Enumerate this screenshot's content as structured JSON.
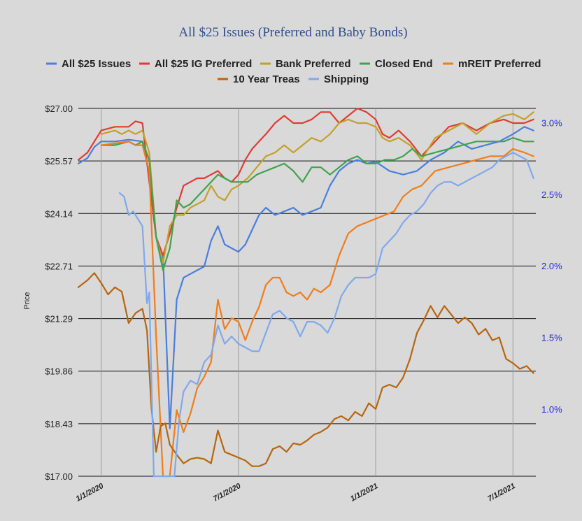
{
  "chart_data": {
    "type": "line",
    "title": "All $25 Issues (Preferred and Baby Bonds)",
    "ylabel": "Price",
    "y_left": {
      "ticks": [
        "$17.00",
        "$18.43",
        "$19.86",
        "$21.29",
        "$22.71",
        "$24.14",
        "$25.57",
        "$27.00"
      ],
      "lim": [
        17.0,
        27.0
      ]
    },
    "y_right": {
      "ticks": [
        "1.0%",
        "1.5%",
        "2.0%",
        "2.5%",
        "3.0%"
      ],
      "lim": [
        0.53,
        3.1
      ]
    },
    "x_ticks": [
      "1/1/2020",
      "7/1/2020",
      "1/1/2021",
      "7/1/2021"
    ],
    "x_tick_pos": [
      0,
      6,
      12,
      18
    ],
    "x_range": [
      -1,
      19
    ],
    "gridlines": true,
    "legend_position": "top",
    "series": [
      {
        "name": "All $25 Issues",
        "color": "#4a7fdc",
        "axis": "left",
        "x": [
          -1,
          -0.6,
          -0.3,
          0,
          0.6,
          1.2,
          1.8,
          2.1,
          2.4,
          2.7,
          3.0,
          3.3,
          3.6,
          3.9,
          4.2,
          4.5,
          4.8,
          5.1,
          5.4,
          5.7,
          6.0,
          6.3,
          6.6,
          6.9,
          7.2,
          7.6,
          8.0,
          8.4,
          8.8,
          9.2,
          9.6,
          10.0,
          10.4,
          10.8,
          11.2,
          11.6,
          12.0,
          12.6,
          13.2,
          13.8,
          14.4,
          15.0,
          15.6,
          16.2,
          16.8,
          17.4,
          18.0,
          18.5,
          18.9
        ],
        "y": [
          25.5,
          25.65,
          25.95,
          26.1,
          26.1,
          26.15,
          26.1,
          25.2,
          23.5,
          23.0,
          18.3,
          21.8,
          22.4,
          22.5,
          22.6,
          22.7,
          23.4,
          23.8,
          23.3,
          23.2,
          23.1,
          23.3,
          23.7,
          24.1,
          24.3,
          24.1,
          24.2,
          24.3,
          24.1,
          24.2,
          24.3,
          24.9,
          25.3,
          25.5,
          25.6,
          25.5,
          25.55,
          25.3,
          25.2,
          25.3,
          25.6,
          25.8,
          26.1,
          25.9,
          26.0,
          26.1,
          26.3,
          26.5,
          26.4
        ]
      },
      {
        "name": "All $25 IG Preferred",
        "color": "#e03c31",
        "axis": "left",
        "x": [
          -1,
          -0.6,
          -0.3,
          0,
          0.6,
          1.2,
          1.5,
          1.8,
          2.1,
          2.4,
          2.7,
          3.0,
          3.3,
          3.6,
          3.9,
          4.2,
          4.5,
          4.8,
          5.1,
          5.4,
          5.7,
          6.0,
          6.3,
          6.6,
          6.9,
          7.2,
          7.6,
          8.0,
          8.4,
          8.8,
          9.2,
          9.6,
          10.0,
          10.4,
          10.8,
          11.2,
          11.6,
          12.0,
          12.3,
          12.6,
          13.0,
          13.5,
          14.0,
          14.6,
          15.2,
          15.8,
          16.4,
          17.0,
          17.6,
          18.0,
          18.5,
          18.9
        ],
        "y": [
          25.6,
          25.8,
          26.1,
          26.4,
          26.5,
          26.5,
          26.65,
          26.6,
          25.0,
          23.5,
          23.0,
          23.6,
          24.3,
          24.9,
          25.0,
          25.1,
          25.1,
          25.2,
          25.3,
          25.1,
          25.0,
          25.2,
          25.6,
          25.9,
          26.1,
          26.3,
          26.6,
          26.8,
          26.6,
          26.6,
          26.7,
          26.9,
          26.9,
          26.6,
          26.8,
          27.0,
          26.9,
          26.7,
          26.3,
          26.2,
          26.4,
          26.1,
          25.7,
          26.1,
          26.5,
          26.6,
          26.4,
          26.6,
          26.7,
          26.6,
          26.6,
          26.7
        ]
      },
      {
        "name": "Bank Preferred",
        "color": "#c4a02a",
        "axis": "left",
        "x": [
          0,
          0.6,
          0.9,
          1.2,
          1.5,
          1.8,
          2.1,
          2.4,
          2.7,
          3.0,
          3.3,
          3.6,
          3.9,
          4.2,
          4.5,
          4.8,
          5.1,
          5.4,
          5.7,
          6.0,
          6.4,
          6.8,
          7.2,
          7.6,
          8.0,
          8.4,
          8.8,
          9.2,
          9.6,
          10.0,
          10.4,
          10.8,
          11.2,
          11.6,
          12.0,
          12.3,
          12.6,
          13.0,
          13.5,
          14.0,
          14.6,
          15.2,
          15.8,
          16.4,
          17.0,
          17.6,
          18.0,
          18.5,
          18.9
        ],
        "y": [
          26.3,
          26.4,
          26.3,
          26.4,
          26.3,
          26.4,
          25.8,
          23.5,
          22.8,
          23.8,
          24.1,
          24.1,
          24.3,
          24.4,
          24.5,
          24.9,
          24.6,
          24.5,
          24.8,
          24.9,
          25.1,
          25.4,
          25.7,
          25.8,
          26.0,
          25.8,
          26.0,
          26.2,
          26.1,
          26.3,
          26.6,
          26.7,
          26.6,
          26.6,
          26.5,
          26.2,
          26.1,
          26.2,
          26.0,
          25.6,
          26.2,
          26.4,
          26.6,
          26.3,
          26.6,
          26.8,
          26.85,
          26.7,
          26.9
        ]
      },
      {
        "name": "Closed End",
        "color": "#3fa34d",
        "axis": "left",
        "x": [
          0,
          0.6,
          1.2,
          1.5,
          1.8,
          2.1,
          2.4,
          2.7,
          3.0,
          3.3,
          3.6,
          3.9,
          4.2,
          4.5,
          4.8,
          5.1,
          5.4,
          5.7,
          6.0,
          6.4,
          6.8,
          7.2,
          7.6,
          8.0,
          8.4,
          8.8,
          9.2,
          9.6,
          10.0,
          10.4,
          10.8,
          11.2,
          11.6,
          12.0,
          12.4,
          12.8,
          13.2,
          13.6,
          14.0,
          14.6,
          15.2,
          15.8,
          16.4,
          17.0,
          17.6,
          18.0,
          18.5,
          18.9
        ],
        "y": [
          26.0,
          26.0,
          26.1,
          26.0,
          26.1,
          25.6,
          23.5,
          22.6,
          23.2,
          24.5,
          24.3,
          24.4,
          24.6,
          24.8,
          25.0,
          25.2,
          25.1,
          25.0,
          25.0,
          25.0,
          25.2,
          25.3,
          25.4,
          25.5,
          25.3,
          25.0,
          25.4,
          25.4,
          25.2,
          25.4,
          25.6,
          25.7,
          25.5,
          25.5,
          25.6,
          25.6,
          25.7,
          25.9,
          25.7,
          25.8,
          25.9,
          26.0,
          26.1,
          26.1,
          26.1,
          26.2,
          26.1,
          26.1
        ]
      },
      {
        "name": "mREIT Preferred",
        "color": "#f07d1c",
        "axis": "left",
        "x": [
          0,
          0.6,
          1.2,
          1.5,
          1.8,
          2.1,
          2.4,
          2.7,
          3.0,
          3.3,
          3.6,
          3.9,
          4.2,
          4.5,
          4.8,
          5.1,
          5.4,
          5.7,
          6.0,
          6.3,
          6.6,
          6.9,
          7.2,
          7.5,
          7.8,
          8.1,
          8.4,
          8.7,
          9.0,
          9.3,
          9.6,
          10.0,
          10.4,
          10.8,
          11.2,
          11.6,
          12.0,
          12.4,
          12.8,
          13.2,
          13.6,
          14.0,
          14.6,
          15.2,
          15.8,
          16.4,
          17.0,
          17.6,
          18.0,
          18.5,
          18.9
        ],
        "y": [
          26.0,
          26.05,
          26.1,
          26.0,
          26.0,
          25.3,
          20.8,
          17.0,
          17.0,
          18.8,
          18.2,
          18.7,
          19.4,
          19.7,
          20.1,
          21.8,
          21.0,
          21.3,
          21.2,
          20.7,
          21.2,
          21.6,
          22.2,
          22.4,
          22.4,
          22.0,
          21.9,
          22.0,
          21.8,
          22.1,
          22.0,
          22.2,
          23.0,
          23.6,
          23.8,
          23.9,
          24.0,
          24.1,
          24.2,
          24.6,
          24.8,
          24.9,
          25.3,
          25.4,
          25.5,
          25.6,
          25.7,
          25.7,
          25.9,
          25.8,
          25.7
        ]
      },
      {
        "name": "10 Year Treas",
        "color": "#b8650f",
        "axis": "right",
        "x": [
          -1,
          -0.6,
          -0.3,
          0,
          0.3,
          0.6,
          0.9,
          1.2,
          1.5,
          1.8,
          2.0,
          2.2,
          2.4,
          2.6,
          2.8,
          3.0,
          3.3,
          3.6,
          3.9,
          4.2,
          4.5,
          4.8,
          5.1,
          5.4,
          5.7,
          6.0,
          6.3,
          6.6,
          6.9,
          7.2,
          7.5,
          7.8,
          8.1,
          8.4,
          8.7,
          9.0,
          9.3,
          9.6,
          9.9,
          10.2,
          10.5,
          10.8,
          11.1,
          11.4,
          11.7,
          12.0,
          12.3,
          12.6,
          12.9,
          13.2,
          13.5,
          13.8,
          14.1,
          14.4,
          14.7,
          15.0,
          15.3,
          15.6,
          15.9,
          16.2,
          16.5,
          16.8,
          17.1,
          17.4,
          17.7,
          18.0,
          18.3,
          18.6,
          18.9
        ],
        "y": [
          1.85,
          1.9,
          1.95,
          1.88,
          1.8,
          1.85,
          1.82,
          1.6,
          1.67,
          1.7,
          1.55,
          1.0,
          0.7,
          0.88,
          0.9,
          0.75,
          0.68,
          0.62,
          0.65,
          0.66,
          0.65,
          0.62,
          0.85,
          0.7,
          0.68,
          0.66,
          0.64,
          0.6,
          0.6,
          0.62,
          0.72,
          0.74,
          0.7,
          0.76,
          0.75,
          0.78,
          0.82,
          0.84,
          0.87,
          0.93,
          0.95,
          0.92,
          0.98,
          0.95,
          1.04,
          1.0,
          1.15,
          1.17,
          1.15,
          1.22,
          1.35,
          1.53,
          1.62,
          1.72,
          1.64,
          1.72,
          1.66,
          1.6,
          1.64,
          1.6,
          1.52,
          1.56,
          1.48,
          1.5,
          1.35,
          1.32,
          1.28,
          1.3,
          1.25
        ]
      },
      {
        "name": "Shipping",
        "color": "#7fa9ec",
        "axis": "left",
        "x": [
          0.8,
          1.0,
          1.2,
          1.4,
          1.6,
          1.8,
          2.0,
          2.1,
          2.3,
          2.5,
          2.7,
          3.0,
          3.2,
          3.4,
          3.6,
          3.9,
          4.2,
          4.5,
          4.8,
          5.1,
          5.4,
          5.7,
          6.0,
          6.3,
          6.6,
          6.9,
          7.2,
          7.5,
          7.8,
          8.1,
          8.4,
          8.7,
          9.0,
          9.3,
          9.6,
          9.9,
          10.2,
          10.5,
          10.8,
          11.1,
          11.4,
          11.7,
          12.0,
          12.3,
          12.6,
          12.9,
          13.2,
          13.5,
          13.8,
          14.1,
          14.4,
          14.7,
          15.0,
          15.3,
          15.6,
          15.9,
          16.2,
          16.5,
          16.8,
          17.1,
          17.4,
          17.7,
          18.0,
          18.3,
          18.6,
          18.9
        ],
        "y": [
          24.7,
          24.6,
          24.1,
          24.2,
          24.0,
          23.8,
          21.7,
          22.0,
          17.0,
          17.0,
          17.0,
          17.0,
          17.0,
          18.5,
          19.3,
          19.6,
          19.5,
          20.1,
          20.3,
          21.1,
          20.6,
          20.8,
          20.6,
          20.5,
          20.4,
          20.4,
          20.9,
          21.4,
          21.5,
          21.3,
          21.2,
          20.8,
          21.2,
          21.2,
          21.1,
          20.9,
          21.3,
          21.9,
          22.2,
          22.4,
          22.4,
          22.4,
          22.5,
          23.2,
          23.4,
          23.6,
          23.9,
          24.1,
          24.2,
          24.4,
          24.7,
          24.9,
          25.0,
          25.0,
          24.9,
          25.0,
          25.1,
          25.2,
          25.3,
          25.4,
          25.6,
          25.7,
          25.8,
          25.7,
          25.6,
          25.1
        ]
      }
    ]
  }
}
